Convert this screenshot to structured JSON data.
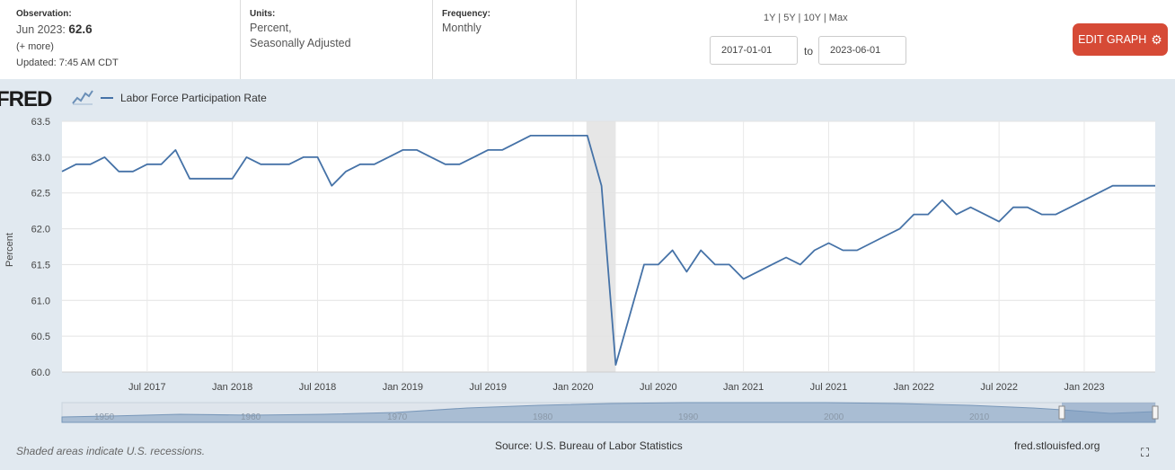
{
  "header": {
    "observation_label": "Observation:",
    "observation_period": "Jun 2023:",
    "observation_value": "62.6",
    "more": "(+ more)",
    "updated": "Updated: 7:45 AM CDT",
    "units_label": "Units:",
    "units_line1": "Percent,",
    "units_line2": "Seasonally Adjusted",
    "frequency_label": "Frequency:",
    "frequency_value": "Monthly",
    "range_links": "1Y | 5Y | 10Y | Max",
    "date_from": "2017-01-01",
    "date_to_label": "to",
    "date_to": "2023-06-01",
    "edit_button": "EDIT GRAPH"
  },
  "brand": {
    "logo_text": "FRED"
  },
  "legend": {
    "series_name": "Labor Force Participation Rate"
  },
  "footer": {
    "recession_note": "Shaded areas indicate U.S. recessions.",
    "source": "Source: U.S. Bureau of Labor Statistics",
    "site": "fred.stlouisfed.org"
  },
  "colors": {
    "series": "#4572a7",
    "recession": "#e6e6e6",
    "panel": "#e1e9f0",
    "button": "#d64a36"
  },
  "icons": {
    "edit": "gear-icon",
    "fullscreen": "expand-icon"
  },
  "chart_data": {
    "type": "line",
    "ylabel": "Percent",
    "ylim": [
      60.0,
      63.5
    ],
    "yticks": [
      "60.0",
      "60.5",
      "61.0",
      "61.5",
      "62.0",
      "62.5",
      "63.0",
      "63.5"
    ],
    "xlim": [
      "2017-01",
      "2023-06"
    ],
    "xticks": [
      {
        "date": "2017-07",
        "label": "Jul 2017"
      },
      {
        "date": "2018-01",
        "label": "Jan 2018"
      },
      {
        "date": "2018-07",
        "label": "Jul 2018"
      },
      {
        "date": "2019-01",
        "label": "Jan 2019"
      },
      {
        "date": "2019-07",
        "label": "Jul 2019"
      },
      {
        "date": "2020-01",
        "label": "Jan 2020"
      },
      {
        "date": "2020-07",
        "label": "Jul 2020"
      },
      {
        "date": "2021-01",
        "label": "Jan 2021"
      },
      {
        "date": "2021-07",
        "label": "Jul 2021"
      },
      {
        "date": "2022-01",
        "label": "Jan 2022"
      },
      {
        "date": "2022-07",
        "label": "Jul 2022"
      },
      {
        "date": "2023-01",
        "label": "Jan 2023"
      }
    ],
    "recession": [
      "2020-02",
      "2020-04"
    ],
    "grid": true,
    "series": [
      {
        "name": "Labor Force Participation Rate",
        "x": [
          "2017-01",
          "2017-02",
          "2017-03",
          "2017-04",
          "2017-05",
          "2017-06",
          "2017-07",
          "2017-08",
          "2017-09",
          "2017-10",
          "2017-11",
          "2017-12",
          "2018-01",
          "2018-02",
          "2018-03",
          "2018-04",
          "2018-05",
          "2018-06",
          "2018-07",
          "2018-08",
          "2018-09",
          "2018-10",
          "2018-11",
          "2018-12",
          "2019-01",
          "2019-02",
          "2019-03",
          "2019-04",
          "2019-05",
          "2019-06",
          "2019-07",
          "2019-08",
          "2019-09",
          "2019-10",
          "2019-11",
          "2019-12",
          "2020-01",
          "2020-02",
          "2020-03",
          "2020-04",
          "2020-05",
          "2020-06",
          "2020-07",
          "2020-08",
          "2020-09",
          "2020-10",
          "2020-11",
          "2020-12",
          "2021-01",
          "2021-02",
          "2021-03",
          "2021-04",
          "2021-05",
          "2021-06",
          "2021-07",
          "2021-08",
          "2021-09",
          "2021-10",
          "2021-11",
          "2021-12",
          "2022-01",
          "2022-02",
          "2022-03",
          "2022-04",
          "2022-05",
          "2022-06",
          "2022-07",
          "2022-08",
          "2022-09",
          "2022-10",
          "2022-11",
          "2022-12",
          "2023-01",
          "2023-02",
          "2023-03",
          "2023-04",
          "2023-05",
          "2023-06"
        ],
        "y": [
          62.8,
          62.9,
          62.9,
          63.0,
          62.8,
          62.8,
          62.9,
          62.9,
          63.1,
          62.7,
          62.7,
          62.7,
          62.7,
          63.0,
          62.9,
          62.9,
          62.9,
          63.0,
          63.0,
          62.6,
          62.8,
          62.9,
          62.9,
          63.0,
          63.1,
          63.1,
          63.0,
          62.9,
          62.9,
          63.0,
          63.1,
          63.1,
          63.2,
          63.3,
          63.3,
          63.3,
          63.3,
          63.3,
          62.6,
          60.1,
          60.8,
          61.5,
          61.5,
          61.7,
          61.4,
          61.7,
          61.5,
          61.5,
          61.3,
          61.4,
          61.5,
          61.6,
          61.5,
          61.7,
          61.8,
          61.7,
          61.7,
          61.8,
          61.9,
          62.0,
          62.2,
          62.2,
          62.4,
          62.2,
          62.3,
          62.2,
          62.1,
          62.3,
          62.3,
          62.2,
          62.2,
          62.3,
          62.4,
          62.5,
          62.6,
          62.6,
          62.6,
          62.6
        ]
      }
    ],
    "navigator_labels": [
      "1950",
      "1960",
      "1970",
      "1980",
      "1990",
      "2000",
      "2010"
    ]
  }
}
